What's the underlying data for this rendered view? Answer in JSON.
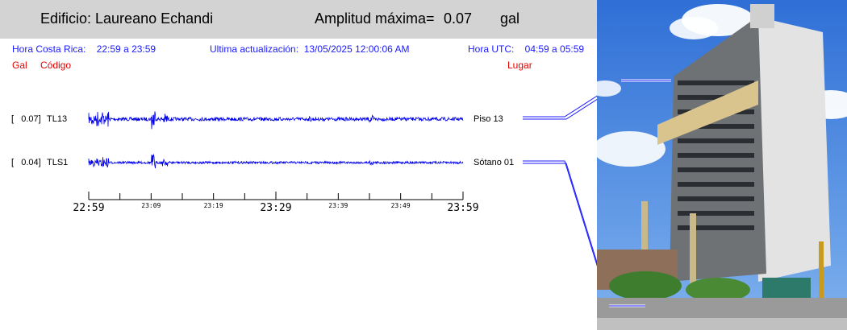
{
  "header": {
    "building": "Edificio: Laureano Echandi",
    "amplitude_label": "Amplitud máxima=",
    "amplitude_value": "0.07",
    "amplitude_unit": "gal"
  },
  "info": {
    "local_time": "Hora Costa Rica:    22:59 a 23:59",
    "last_update": "Ultima actualización:  13/05/2025 12:00:06 AM",
    "utc_time": "Hora UTC:    04:59 a 05:59"
  },
  "columns": {
    "gal": "Gal",
    "code": "Código",
    "place": "Lugar"
  },
  "colors": {
    "trace": "#0000ee",
    "header_bg": "#d3d3d3",
    "info_text": "#1a1aff",
    "column_text": "#e00000"
  },
  "chart_data": {
    "type": "line",
    "x_start": "22:59",
    "x_end": "23:59",
    "major_ticks": [
      "22:59",
      "23:29",
      "23:59"
    ],
    "minor_ticks": [
      "23:09",
      "23:19",
      "23:39",
      "23:49"
    ],
    "series": [
      {
        "name": "TL13",
        "gal_label": "[   0.07]",
        "place": "Piso 13",
        "peak_gal": 0.07
      },
      {
        "name": "TLS1",
        "gal_label": "[   0.04]",
        "place": "Sótano 01",
        "peak_gal": 0.04
      }
    ]
  }
}
